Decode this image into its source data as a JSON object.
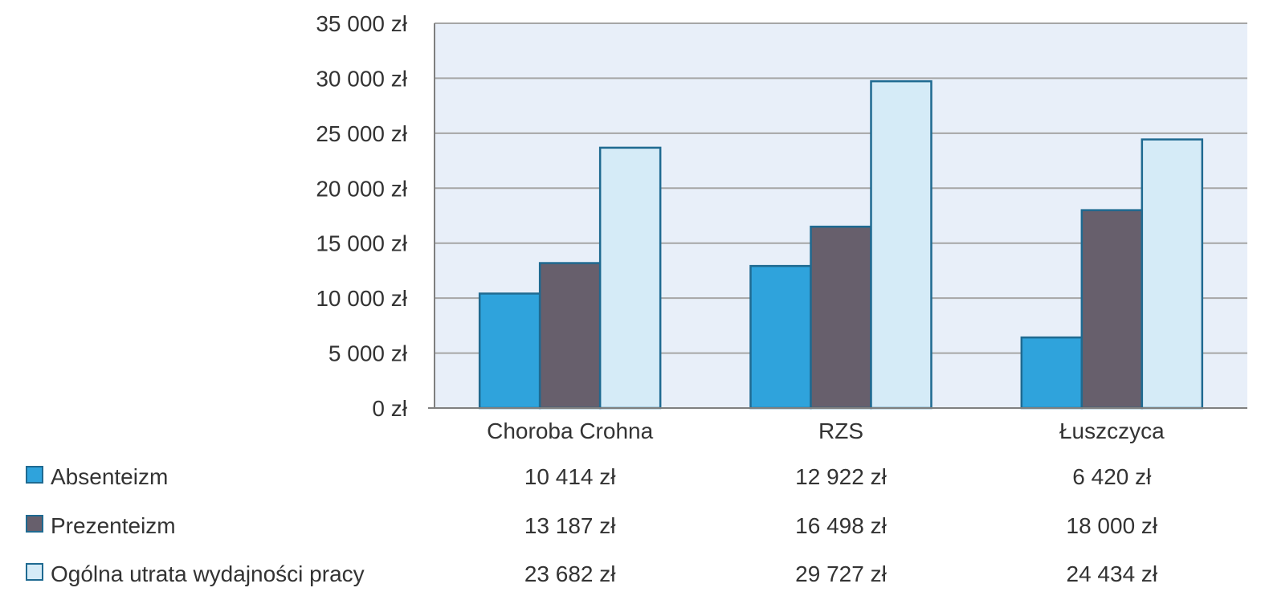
{
  "chart_data": {
    "type": "bar",
    "title": "",
    "xlabel": "",
    "ylabel": "",
    "ylim": [
      0,
      35000
    ],
    "y_ticks": [
      "0 zł",
      "5 000 zł",
      "10 000 zł",
      "15 000 zł",
      "20 000 zł",
      "25 000 zł",
      "30 000 zł",
      "35 000 zł"
    ],
    "y_tick_values": [
      0,
      5000,
      10000,
      15000,
      20000,
      25000,
      30000,
      35000
    ],
    "categories": [
      "Choroba Crohna",
      "RZS",
      "Łuszczyca"
    ],
    "grid": true,
    "legend_position": "bottom-left (data table)",
    "series": [
      {
        "name": "Absenteizm",
        "values": [
          10414,
          12922,
          6420
        ],
        "labels": [
          "10 414 zł",
          "12 922 zł",
          "6 420 zł"
        ],
        "color": "#2fa3dc"
      },
      {
        "name": "Prezenteizm",
        "values": [
          13187,
          16498,
          18000
        ],
        "labels": [
          "13 187 zł",
          "16 498 zł",
          "18 000 zł"
        ],
        "color": "#675f6c"
      },
      {
        "name": "Ogólna utrata wydajności pracy",
        "values": [
          23682,
          29727,
          24434
        ],
        "labels": [
          "23 682 zł",
          "29 727 zł",
          "24 434 zł"
        ],
        "color": "#d5ebf7"
      }
    ],
    "colors": {
      "plot_background": "#e8eff9",
      "grid": "#a6a6a6",
      "bar_border": "#1f6a91",
      "axis": "#7f7f7f"
    }
  }
}
